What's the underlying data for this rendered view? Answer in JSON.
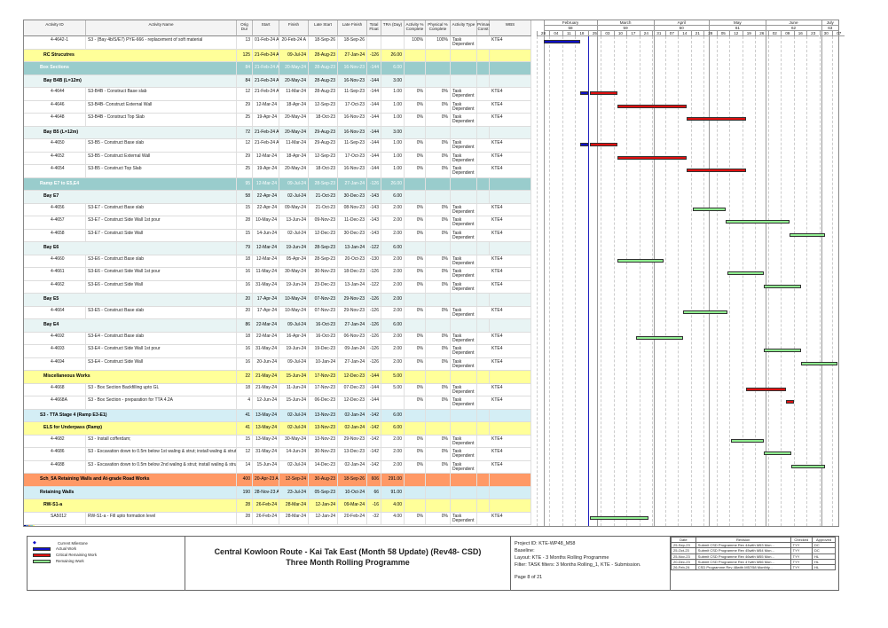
{
  "columns": [
    "Activity ID",
    "Activity Name",
    "Orig Dur",
    "Start",
    "Finish",
    "Late Start",
    "Late Finish",
    "Total Float",
    "TRA (Day)",
    "Activity % Complete",
    "Physical % Complete",
    "Activity Type",
    "Primav Const",
    "WBS"
  ],
  "timescale": {
    "months": [
      {
        "name": "February",
        "num": "58"
      },
      {
        "name": "March",
        "num": "59"
      },
      {
        "name": "April",
        "num": "60"
      },
      {
        "name": "May",
        "num": "61"
      },
      {
        "name": "June",
        "num": "62"
      },
      {
        "name": "July",
        "num": "63"
      }
    ],
    "weeks": [
      "28",
      "04",
      "11",
      "18",
      "25",
      "03",
      "10",
      "17",
      "24",
      "31",
      "07",
      "14",
      "21",
      "28",
      "05",
      "12",
      "19",
      "26",
      "02",
      "09",
      "16",
      "23",
      "30",
      "07"
    ]
  },
  "colors": {
    "actual": "#1010c8",
    "critical": "#e01010",
    "remaining": "#90ee90",
    "data_date": "#2020c0",
    "yellow": "#ffff99",
    "teal": "#99cccc",
    "light": "#e8f4f4",
    "blue_band": "#d4eef5",
    "orange": "#ff9966"
  },
  "rows": [
    {
      "level": "act",
      "id": "4-4642-1",
      "name": "S3 - (Bay 4b/S/E7) PYE-666 - replacement of soft material",
      "dur": "13",
      "start": "01-Feb-24 A",
      "finish": "20-Feb-24 A",
      "ls": "18-Sep-26",
      "lf": "18-Sep-26",
      "tf": "",
      "tra": "",
      "ap": "100%",
      "pp": "100%",
      "type": "Task Dependent",
      "wbs": "KTE4",
      "bar": "actual"
    },
    {
      "level": "yellow",
      "name": "RC Strucutres",
      "dur": "125",
      "start": "21-Feb-24 A",
      "finish": "09-Jul-24",
      "ls": "28-Aug-23",
      "lf": "27-Jan-24",
      "tf": "-126",
      "tra": "26.00"
    },
    {
      "level": "teal",
      "name": "Box Sections",
      "dur": "84",
      "start": "21-Feb-24 A",
      "finish": "20-May-24",
      "ls": "28-Aug-23",
      "lf": "16-Nov-23",
      "tf": "-144",
      "tra": "6.00"
    },
    {
      "level": "light",
      "name": "Bay B4B (L=12m)",
      "dur": "84",
      "start": "21-Feb-24 A",
      "finish": "20-May-24",
      "ls": "28-Aug-23",
      "lf": "16-Nov-23",
      "tf": "-144",
      "tra": "3.00"
    },
    {
      "level": "act",
      "id": "4-4644",
      "name": "S3-B4B - Construct Base slab",
      "dur": "12",
      "start": "21-Feb-24 A",
      "finish": "11-Mar-24",
      "ls": "28-Aug-23",
      "lf": "11-Sep-23",
      "tf": "-144",
      "tra": "1.00",
      "ap": "0%",
      "pp": "0%",
      "type": "Task Dependent",
      "wbs": "KTE4",
      "bar": "critical"
    },
    {
      "level": "act",
      "id": "4-4646",
      "name": "S3-B4B- Construct External Wall",
      "dur": "29",
      "start": "12-Mar-24",
      "finish": "18-Apr-24",
      "ls": "12-Sep-23",
      "lf": "17-Oct-23",
      "tf": "-144",
      "tra": "1.00",
      "ap": "0%",
      "pp": "0%",
      "type": "Task Dependent",
      "wbs": "KTE4",
      "bar": "critical"
    },
    {
      "level": "act",
      "id": "4-4648",
      "name": "S3-B4B - Construct Top Slab",
      "dur": "25",
      "start": "19-Apr-24",
      "finish": "20-May-24",
      "ls": "18-Oct-23",
      "lf": "16-Nov-23",
      "tf": "-144",
      "tra": "1.00",
      "ap": "0%",
      "pp": "0%",
      "type": "Task Dependent",
      "wbs": "KTE4",
      "bar": "critical"
    },
    {
      "level": "light",
      "name": "Bay B5 (L=12m)",
      "dur": "72",
      "start": "21-Feb-24 A",
      "finish": "20-May-24",
      "ls": "29-Aug-23",
      "lf": "16-Nov-23",
      "tf": "-144",
      "tra": "3.00"
    },
    {
      "level": "act",
      "id": "4-4650",
      "name": "S3-B5 - Construct Base slab",
      "dur": "12",
      "start": "21-Feb-24 A",
      "finish": "11-Mar-24",
      "ls": "29-Aug-23",
      "lf": "11-Sep-23",
      "tf": "-144",
      "tra": "1.00",
      "ap": "0%",
      "pp": "0%",
      "type": "Task Dependent",
      "wbs": "KTE4",
      "bar": "critical"
    },
    {
      "level": "act",
      "id": "4-4652",
      "name": "S3-B5 - Construct External Wall",
      "dur": "29",
      "start": "12-Mar-24",
      "finish": "18-Apr-24",
      "ls": "12-Sep-23",
      "lf": "17-Oct-23",
      "tf": "-144",
      "tra": "1.00",
      "ap": "0%",
      "pp": "0%",
      "type": "Task Dependent",
      "wbs": "KTE4",
      "bar": "critical"
    },
    {
      "level": "act",
      "id": "4-4654",
      "name": "S3-B5 - Construct Top Slab",
      "dur": "25",
      "start": "19-Apr-24",
      "finish": "20-May-24",
      "ls": "18-Oct-23",
      "lf": "16-Nov-23",
      "tf": "-144",
      "tra": "1.00",
      "ap": "0%",
      "pp": "0%",
      "type": "Task Dependent",
      "wbs": "KTE4",
      "bar": "critical"
    },
    {
      "level": "teal",
      "name": "Ramp E7 to E5,E4",
      "dur": "95",
      "start": "12-Mar-24",
      "finish": "09-Jul-24",
      "ls": "28-Sep-23",
      "lf": "27-Jan-24",
      "tf": "-126",
      "tra": "26.00"
    },
    {
      "level": "light",
      "name": "Bay E7",
      "dur": "58",
      "start": "22-Apr-24",
      "finish": "02-Jul-24",
      "ls": "21-Oct-23",
      "lf": "30-Dec-23",
      "tf": "-143",
      "tra": "6.00"
    },
    {
      "level": "act",
      "id": "4-4656",
      "name": "S3-E7 - Construct Base slab",
      "dur": "15",
      "start": "22-Apr-24",
      "finish": "09-May-24",
      "ls": "21-Oct-23",
      "lf": "08-Nov-23",
      "tf": "-143",
      "tra": "2.00",
      "ap": "0%",
      "pp": "0%",
      "type": "Task Dependent",
      "wbs": "KTE4",
      "bar": "remaining"
    },
    {
      "level": "act",
      "id": "4-4657",
      "name": "S3-E7 - Construct Side Wall 1st pour",
      "dur": "28",
      "start": "10-May-24",
      "finish": "13-Jun-24",
      "ls": "09-Nov-23",
      "lf": "11-Dec-23",
      "tf": "-143",
      "tra": "2.00",
      "ap": "0%",
      "pp": "0%",
      "type": "Task Dependent",
      "wbs": "KTE4",
      "bar": "remaining"
    },
    {
      "level": "act",
      "id": "4-4658",
      "name": "S3-E7 - Construct Side Wall",
      "dur": "15",
      "start": "14-Jun-24",
      "finish": "02-Jul-24",
      "ls": "12-Dec-23",
      "lf": "30-Dec-23",
      "tf": "-143",
      "tra": "2.00",
      "ap": "0%",
      "pp": "0%",
      "type": "Task Dependent",
      "wbs": "KTE4",
      "bar": "remaining"
    },
    {
      "level": "light",
      "name": "Bay E6",
      "dur": "79",
      "start": "12-Mar-24",
      "finish": "19-Jun-24",
      "ls": "28-Sep-23",
      "lf": "13-Jan-24",
      "tf": "-122",
      "tra": "6.00"
    },
    {
      "level": "act",
      "id": "4-4660",
      "name": "S3-E6 - Construct Base slab",
      "dur": "18",
      "start": "12-Mar-24",
      "finish": "05-Apr-24",
      "ls": "28-Sep-23",
      "lf": "20-Oct-23",
      "tf": "-130",
      "tra": "2.00",
      "ap": "0%",
      "pp": "0%",
      "type": "Task Dependent",
      "wbs": "KTE4",
      "bar": "remaining"
    },
    {
      "level": "act",
      "id": "4-4661",
      "name": "S3-E6 - Construct Side Wall 1st pour",
      "dur": "16",
      "start": "11-May-24",
      "finish": "30-May-24",
      "ls": "30-Nov-23",
      "lf": "18-Dec-23",
      "tf": "-126",
      "tra": "2.00",
      "ap": "0%",
      "pp": "0%",
      "type": "Task Dependent",
      "wbs": "KTE4",
      "bar": "remaining"
    },
    {
      "level": "act",
      "id": "4-4662",
      "name": "S3-E6 - Construct Side Wall",
      "dur": "16",
      "start": "31-May-24",
      "finish": "19-Jun-24",
      "ls": "23-Dec-23",
      "lf": "13-Jan-24",
      "tf": "-122",
      "tra": "2.00",
      "ap": "0%",
      "pp": "0%",
      "type": "Task Dependent",
      "wbs": "KTE4",
      "bar": "remaining"
    },
    {
      "level": "light",
      "name": "Bay E5",
      "dur": "20",
      "start": "17-Apr-24",
      "finish": "10-May-24",
      "ls": "07-Nov-23",
      "lf": "29-Nov-23",
      "tf": "-126",
      "tra": "2.00"
    },
    {
      "level": "act",
      "id": "4-4664",
      "name": "S3-E5 - Construct Base slab",
      "dur": "20",
      "start": "17-Apr-24",
      "finish": "10-May-24",
      "ls": "07-Nov-23",
      "lf": "29-Nov-23",
      "tf": "-126",
      "tra": "2.00",
      "ap": "0%",
      "pp": "0%",
      "type": "Task Dependent",
      "wbs": "KTE4",
      "bar": "remaining"
    },
    {
      "level": "light",
      "name": "Bay E4",
      "dur": "86",
      "start": "22-Mar-24",
      "finish": "09-Jul-24",
      "ls": "16-Oct-23",
      "lf": "27-Jan-24",
      "tf": "-126",
      "tra": "6.00"
    },
    {
      "level": "act",
      "id": "4-4692",
      "name": "S3-E4 - Construct Base slab",
      "dur": "18",
      "start": "22-Mar-24",
      "finish": "16-Apr-24",
      "ls": "16-Oct-23",
      "lf": "06-Nov-23",
      "tf": "-126",
      "tra": "2.00",
      "ap": "0%",
      "pp": "0%",
      "type": "Task Dependent",
      "wbs": "KTE4",
      "bar": "remaining"
    },
    {
      "level": "act",
      "id": "4-4693",
      "name": "S3-E4 - Construct Side Wall 1st pour",
      "dur": "16",
      "start": "31-May-24",
      "finish": "19-Jun-24",
      "ls": "19-Dec-23",
      "lf": "09-Jan-24",
      "tf": "-126",
      "tra": "2.00",
      "ap": "0%",
      "pp": "0%",
      "type": "Task Dependent",
      "wbs": "KTE4",
      "bar": "remaining"
    },
    {
      "level": "act",
      "id": "4-4694",
      "name": "S3-E4 - Construct Side Wall",
      "dur": "16",
      "start": "20-Jun-24",
      "finish": "09-Jul-24",
      "ls": "10-Jan-24",
      "lf": "27-Jan-24",
      "tf": "-126",
      "tra": "2.00",
      "ap": "0%",
      "pp": "0%",
      "type": "Task Dependent",
      "wbs": "KTE4",
      "bar": "remaining"
    },
    {
      "level": "yellow",
      "name": "Miscellaneous Works",
      "dur": "22",
      "start": "21-May-24",
      "finish": "15-Jun-24",
      "ls": "17-Nov-23",
      "lf": "12-Dec-23",
      "tf": "-144",
      "tra": "5.00"
    },
    {
      "level": "act",
      "id": "4-4668",
      "name": "S3 - Box Section Backfilling upto GL",
      "dur": "18",
      "start": "21-May-24",
      "finish": "11-Jun-24",
      "ls": "17-Nov-23",
      "lf": "07-Dec-23",
      "tf": "-144",
      "tra": "5.00",
      "ap": "0%",
      "pp": "0%",
      "type": "Task Dependent",
      "wbs": "KTE4",
      "bar": "critical"
    },
    {
      "level": "act",
      "id": "4-4668A",
      "name": "S3 - Box Section - preparation for TTA 4.2A",
      "dur": "4",
      "start": "12-Jun-24",
      "finish": "15-Jun-24",
      "ls": "06-Dec-23",
      "lf": "12-Dec-23",
      "tf": "-144",
      "tra": "",
      "ap": "0%",
      "pp": "0%",
      "type": "Task Dependent",
      "wbs": "KTE4",
      "bar": "critical"
    },
    {
      "level": "blue",
      "name": "S3 - TTA Stage 4 (Ramp E3-E1)",
      "dur": "41",
      "start": "13-May-24",
      "finish": "02-Jul-24",
      "ls": "13-Nov-23",
      "lf": "02-Jan-24",
      "tf": "-142",
      "tra": "6.00"
    },
    {
      "level": "yellow",
      "name": "ELS for Underpass (Ramp)",
      "dur": "41",
      "start": "13-May-24",
      "finish": "02-Jul-24",
      "ls": "13-Nov-23",
      "lf": "02-Jan-24",
      "tf": "-142",
      "tra": "6.00"
    },
    {
      "level": "act",
      "id": "4-4682",
      "name": "S3 - Install cofferdam;",
      "dur": "15",
      "start": "13-May-24",
      "finish": "30-May-24",
      "ls": "13-Nov-23",
      "lf": "29-Nov-23",
      "tf": "-142",
      "tra": "2.00",
      "ap": "0%",
      "pp": "0%",
      "type": "Task Dependent",
      "wbs": "KTE4",
      "bar": "remaining"
    },
    {
      "level": "act",
      "id": "4-4686",
      "name": "S3 - Excavation down to 0.5m below 1st waling & strut; install waling & strut",
      "dur": "12",
      "start": "31-May-24",
      "finish": "14-Jun-24",
      "ls": "30-Nov-23",
      "lf": "13-Dec-23",
      "tf": "-142",
      "tra": "2.00",
      "ap": "0%",
      "pp": "0%",
      "type": "Task Dependent",
      "wbs": "KTE4",
      "bar": "remaining"
    },
    {
      "level": "act",
      "id": "4-4688",
      "name": "S3 - Excavation down to 0.5m below 2nd waling & strut; install waling & strut",
      "dur": "14",
      "start": "15-Jun-24",
      "finish": "02-Jul-24",
      "ls": "14-Dec-23",
      "lf": "02-Jan-24",
      "tf": "-142",
      "tra": "2.00",
      "ap": "0%",
      "pp": "0%",
      "type": "Task Dependent",
      "wbs": "KTE4",
      "bar": "remaining"
    },
    {
      "level": "orange",
      "name": "Sch_5A Retaining Walls and At-grade Road Works",
      "dur": "400",
      "start": "20-Apr-23 A",
      "finish": "12-Sep-24",
      "ls": "30-Aug-23",
      "lf": "18-Sep-26",
      "tf": "606",
      "tra": "291.00"
    },
    {
      "level": "blue",
      "name": "Retaining Walls",
      "dur": "190",
      "start": "28-Nov-23 A",
      "finish": "23-Jul-24",
      "ls": "05-Sep-23",
      "lf": "10-Oct-24",
      "tf": "66",
      "tra": "91.00"
    },
    {
      "level": "yellow",
      "name": "RW-S1-a",
      "dur": "28",
      "start": "26-Feb-24",
      "finish": "28-Mar-24",
      "ls": "12-Jan-24",
      "lf": "09-Mar-24",
      "tf": "-16",
      "tra": "4.00"
    },
    {
      "level": "act",
      "id": "SA5012",
      "name": "RW-S1-a - Fill upto formation level",
      "dur": "28",
      "start": "26-Feb-24",
      "finish": "28-Mar-24",
      "ls": "12-Jan-24",
      "lf": "20-Feb-24",
      "tf": "-32",
      "tra": "4.00",
      "ap": "0%",
      "pp": "0%",
      "type": "Task Dependent",
      "wbs": "KTE4",
      "bar": "remaining"
    }
  ],
  "legend": [
    {
      "label": "Current Milestone",
      "icon": "diamond-icon"
    },
    {
      "label": "Actual Work",
      "icon": "bar-actual"
    },
    {
      "label": "Critical Remaining Work",
      "icon": "bar-critical"
    },
    {
      "label": "Remaining Work",
      "icon": "bar-remaining"
    }
  ],
  "footer": {
    "title": "Central Kowloon Route - Kai Tak East (Month 58 Update) (Rev48- CSD)",
    "subtitle": "Three Month Rolling Programme",
    "project_id": "Project ID: KTE-WP48_M58",
    "baseline": "Baseline:",
    "layout": "Layout: KTE - 3 Months Rolling Programme",
    "filter": "Filter: TASK filters: 3 Months Rolling_1, KTE - Submission.",
    "page": "Page 8 of 21",
    "rev_headers": [
      "Date",
      "Revision",
      "Checked",
      "Approved"
    ],
    "revisions": [
      [
        "25-Sep-23",
        "Submit CSD Programme Rev 44with M53 Mon...",
        "TYY",
        "DC"
      ],
      [
        "25-Oct-23",
        "Submit CSD Programme Rev 45with M54 Mon...",
        "TYY",
        "DC"
      ],
      [
        "25-Nov-23",
        "Submit CSD Programme Rev 46with M55 Mon...",
        "TYY",
        "HL"
      ],
      [
        "20-Dec-23",
        "Submit CSD Programme Rev 47with M56 Mon...",
        "TYY",
        "HL"
      ],
      [
        "26-Feb-24",
        "CSD Programme Rev 48with M57/58 Monthly...",
        "TYY",
        "HL"
      ]
    ]
  }
}
